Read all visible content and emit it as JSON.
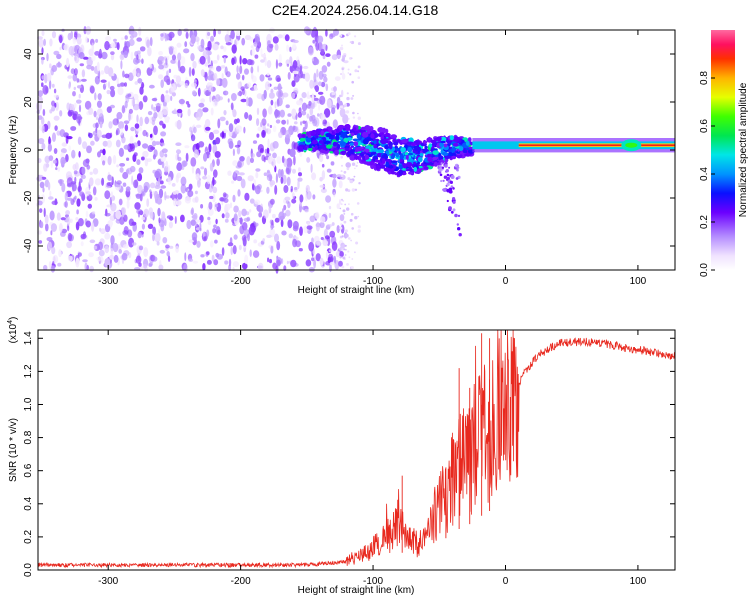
{
  "title": "C2E4.2024.256.04.14.G18",
  "chart_data": [
    {
      "type": "heatmap",
      "xlabel": "Height of straight line (km)",
      "ylabel": "Frequency (Hz)",
      "xlim": [
        -353,
        128
      ],
      "ylim": [
        -50,
        50
      ],
      "xticks": [
        -300,
        -200,
        -100,
        0,
        100
      ],
      "yticks": [
        -40,
        -20,
        0,
        20,
        40
      ],
      "colorbar": {
        "label": "Normalized spectral amplitude",
        "range": [
          0,
          1
        ],
        "ticks": [
          0.0,
          0.2,
          0.4,
          0.6,
          0.8
        ]
      },
      "features": {
        "noise_region_x": [
          -353,
          -118
        ],
        "transition_region_x": [
          -155,
          -25
        ],
        "carrier_line_x": [
          -25,
          128
        ],
        "carrier_frequency": 2,
        "drift_track": [
          {
            "x": -155,
            "y": 3
          },
          {
            "x": -140,
            "y": 4
          },
          {
            "x": -120,
            "y": 4
          },
          {
            "x": -100,
            "y": 1
          },
          {
            "x": -90,
            "y": -1
          },
          {
            "x": -80,
            "y": -3
          },
          {
            "x": -70,
            "y": -3
          },
          {
            "x": -60,
            "y": -2
          },
          {
            "x": -50,
            "y": 0
          },
          {
            "x": -40,
            "y": 1
          },
          {
            "x": -30,
            "y": 1
          },
          {
            "x": -20,
            "y": 2
          },
          {
            "x": 0,
            "y": 2
          }
        ]
      }
    },
    {
      "type": "line",
      "xlabel": "Height of straight line (km)",
      "ylabel": "SNR (10 * v/v)",
      "yscale_note": "(x10",
      "yscale_exp": "4",
      "xlim": [
        -353,
        128
      ],
      "ylim": [
        0,
        1.45
      ],
      "xticks": [
        -300,
        -200,
        -100,
        0,
        100
      ],
      "yticks": [
        0.0,
        0.2,
        0.4,
        0.6,
        0.8,
        1.0,
        1.2,
        1.4
      ],
      "series": [
        {
          "color": "#e8281e",
          "envelope": [
            {
              "x": -353,
              "y": 0.03
            },
            {
              "x": -250,
              "y": 0.03
            },
            {
              "x": -150,
              "y": 0.03
            },
            {
              "x": -120,
              "y": 0.05
            },
            {
              "x": -110,
              "y": 0.08
            },
            {
              "x": -100,
              "y": 0.13
            },
            {
              "x": -90,
              "y": 0.2
            },
            {
              "x": -80,
              "y": 0.3
            },
            {
              "x": -75,
              "y": 0.2
            },
            {
              "x": -65,
              "y": 0.15
            },
            {
              "x": -55,
              "y": 0.3
            },
            {
              "x": -45,
              "y": 0.48
            },
            {
              "x": -35,
              "y": 0.62
            },
            {
              "x": -30,
              "y": 0.65
            },
            {
              "x": -25,
              "y": 0.72
            },
            {
              "x": -20,
              "y": 0.8
            },
            {
              "x": -15,
              "y": 0.85
            },
            {
              "x": -10,
              "y": 0.92
            },
            {
              "x": -5,
              "y": 0.95
            },
            {
              "x": 5,
              "y": 1.05
            },
            {
              "x": 15,
              "y": 1.2
            },
            {
              "x": 25,
              "y": 1.3
            },
            {
              "x": 40,
              "y": 1.37
            },
            {
              "x": 60,
              "y": 1.38
            },
            {
              "x": 80,
              "y": 1.36
            },
            {
              "x": 100,
              "y": 1.33
            },
            {
              "x": 115,
              "y": 1.31
            },
            {
              "x": 128,
              "y": 1.29
            }
          ],
          "spikes": [
            {
              "x": -78,
              "y": 0.57
            },
            {
              "x": -45,
              "y": 0.62
            },
            {
              "x": -35,
              "y": 1.22
            },
            {
              "x": -27,
              "y": 1.1
            },
            {
              "x": -18,
              "y": 1.43
            },
            {
              "x": -12,
              "y": 1.4
            }
          ]
        }
      ]
    }
  ]
}
